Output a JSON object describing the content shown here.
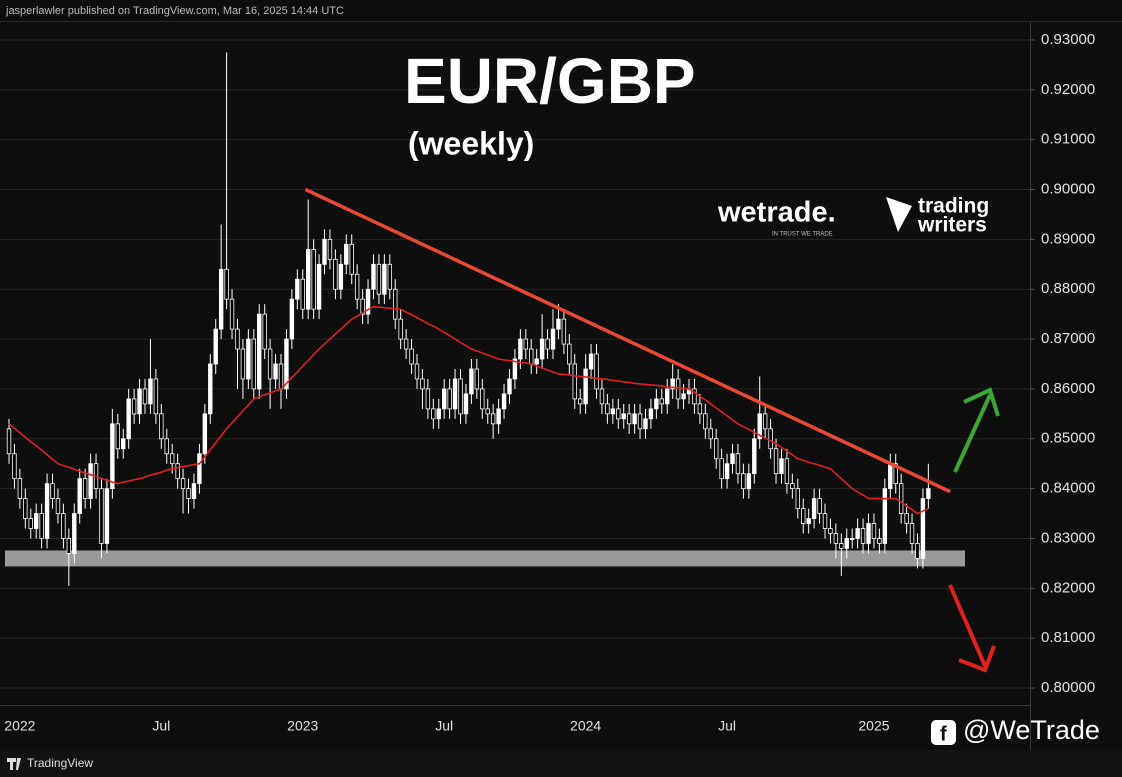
{
  "page": {
    "byline": "jasperlawler published on TradingView.com, Mar 16, 2025 14:44 UTC",
    "footer_brand": "TradingView",
    "handle": "@WeTrade"
  },
  "watermarks": {
    "brand": "wetrade.",
    "tagline": "IN TRUST WE TRADE",
    "partner_line1": "trading",
    "partner_line2": "writers"
  },
  "chart_data": {
    "type": "candlestick",
    "title": "EUR/GBP",
    "subtitle": "(weekly)",
    "up_color": "#ffffff",
    "down_color": "#000000",
    "wick_color": "#ffffff",
    "ylim": [
      0.7966,
      0.9336
    ],
    "yticks": [
      {
        "value": 0.8,
        "label": "0.80000"
      },
      {
        "value": 0.81,
        "label": "0.81000"
      },
      {
        "value": 0.82,
        "label": "0.82000"
      },
      {
        "value": 0.83,
        "label": "0.83000"
      },
      {
        "value": 0.84,
        "label": "0.84000"
      },
      {
        "value": 0.85,
        "label": "0.85000"
      },
      {
        "value": 0.86,
        "label": "0.86000"
      },
      {
        "value": 0.87,
        "label": "0.87000"
      },
      {
        "value": 0.88,
        "label": "0.88000"
      },
      {
        "value": 0.89,
        "label": "0.89000"
      },
      {
        "value": 0.9,
        "label": "0.90000"
      },
      {
        "value": 0.91,
        "label": "0.91000"
      },
      {
        "value": 0.92,
        "label": "0.92000"
      },
      {
        "value": 0.93,
        "label": "0.93000"
      }
    ],
    "grid": true,
    "categories": [
      null,
      null,
      "2022",
      null,
      null,
      null,
      null,
      null,
      null,
      null,
      null,
      null,
      null,
      null,
      null,
      null,
      null,
      null,
      null,
      null,
      null,
      null,
      null,
      null,
      null,
      null,
      null,
      null,
      "Jul",
      null,
      null,
      null,
      null,
      null,
      null,
      null,
      null,
      null,
      null,
      null,
      null,
      null,
      null,
      null,
      null,
      null,
      null,
      null,
      null,
      null,
      null,
      null,
      null,
      null,
      "2023",
      null,
      null,
      null,
      null,
      null,
      null,
      null,
      null,
      null,
      null,
      null,
      null,
      null,
      null,
      null,
      null,
      null,
      null,
      null,
      null,
      null,
      null,
      null,
      null,
      null,
      "Jul",
      null,
      null,
      null,
      null,
      null,
      null,
      null,
      null,
      null,
      null,
      null,
      null,
      null,
      null,
      null,
      null,
      null,
      null,
      null,
      null,
      null,
      null,
      null,
      null,
      null,
      "2024",
      null,
      null,
      null,
      null,
      null,
      null,
      null,
      null,
      null,
      null,
      null,
      null,
      null,
      null,
      null,
      null,
      null,
      null,
      null,
      null,
      null,
      null,
      null,
      null,
      null,
      "Jul",
      null,
      null,
      null,
      null,
      null,
      null,
      null,
      null,
      null,
      null,
      null,
      null,
      null,
      null,
      null,
      null,
      null,
      null,
      null,
      null,
      null,
      null,
      null,
      null,
      null,
      null,
      "2025",
      null,
      null,
      null,
      null,
      null,
      null,
      null,
      null,
      null,
      null
    ],
    "open": [
      0.852,
      0.847,
      0.842,
      0.838,
      0.834,
      0.832,
      0.835,
      0.83,
      0.841,
      0.838,
      0.835,
      0.83,
      0.827,
      0.835,
      0.842,
      0.838,
      0.845,
      0.84,
      0.829,
      0.84,
      0.853,
      0.848,
      0.85,
      0.858,
      0.855,
      0.86,
      0.857,
      0.862,
      0.855,
      0.85,
      0.847,
      0.845,
      0.842,
      0.84,
      0.838,
      0.841,
      0.847,
      0.855,
      0.865,
      0.872,
      0.884,
      0.878,
      0.872,
      0.868,
      0.862,
      0.87,
      0.86,
      0.875,
      0.868,
      0.862,
      0.865,
      0.86,
      0.87,
      0.878,
      0.882,
      0.876,
      0.888,
      0.876,
      0.885,
      0.89,
      0.886,
      0.88,
      0.885,
      0.889,
      0.883,
      0.878,
      0.875,
      0.88,
      0.885,
      0.879,
      0.885,
      0.88,
      0.874,
      0.87,
      0.868,
      0.865,
      0.862,
      0.86,
      0.856,
      0.854,
      0.856,
      0.86,
      0.856,
      0.862,
      0.855,
      0.859,
      0.864,
      0.86,
      0.856,
      0.855,
      0.853,
      0.856,
      0.859,
      0.862,
      0.866,
      0.87,
      0.868,
      0.865,
      0.866,
      0.87,
      0.868,
      0.872,
      0.874,
      0.869,
      0.865,
      0.858,
      0.857,
      0.864,
      0.867,
      0.86,
      0.857,
      0.855,
      0.856,
      0.854,
      0.855,
      0.853,
      0.855,
      0.852,
      0.854,
      0.856,
      0.858,
      0.857,
      0.86,
      0.862,
      0.858,
      0.859,
      0.86,
      0.857,
      0.855,
      0.852,
      0.85,
      0.846,
      0.842,
      0.845,
      0.847,
      0.843,
      0.84,
      0.843,
      0.85,
      0.855,
      0.852,
      0.848,
      0.843,
      0.846,
      0.841,
      0.84,
      0.836,
      0.833,
      0.834,
      0.838,
      0.835,
      0.832,
      0.831,
      0.829,
      0.828,
      0.83,
      0.83,
      0.832,
      0.829,
      0.833,
      0.83,
      0.829,
      0.84,
      0.845,
      0.841,
      0.835,
      0.833,
      0.829,
      0.826,
      0.838
    ],
    "high": [
      0.854,
      0.849,
      0.844,
      0.84,
      0.836,
      0.837,
      0.837,
      0.843,
      0.843,
      0.84,
      0.837,
      0.832,
      0.837,
      0.844,
      0.844,
      0.847,
      0.847,
      0.842,
      0.842,
      0.856,
      0.855,
      0.852,
      0.86,
      0.86,
      0.862,
      0.862,
      0.87,
      0.864,
      0.857,
      0.852,
      0.849,
      0.847,
      0.844,
      0.842,
      0.843,
      0.849,
      0.857,
      0.867,
      0.874,
      0.893,
      0.9275,
      0.88,
      0.874,
      0.87,
      0.872,
      0.872,
      0.877,
      0.877,
      0.87,
      0.867,
      0.867,
      0.872,
      0.88,
      0.884,
      0.884,
      0.898,
      0.89,
      0.887,
      0.892,
      0.892,
      0.888,
      0.887,
      0.891,
      0.891,
      0.885,
      0.88,
      0.882,
      0.887,
      0.887,
      0.887,
      0.887,
      0.882,
      0.876,
      0.872,
      0.87,
      0.867,
      0.864,
      0.862,
      0.858,
      0.858,
      0.862,
      0.862,
      0.864,
      0.864,
      0.861,
      0.866,
      0.866,
      0.862,
      0.858,
      0.857,
      0.858,
      0.861,
      0.864,
      0.868,
      0.872,
      0.872,
      0.87,
      0.868,
      0.875,
      0.872,
      0.876,
      0.877,
      0.876,
      0.871,
      0.867,
      0.86,
      0.867,
      0.869,
      0.869,
      0.862,
      0.859,
      0.858,
      0.858,
      0.857,
      0.857,
      0.857,
      0.857,
      0.856,
      0.858,
      0.86,
      0.86,
      0.862,
      0.865,
      0.864,
      0.861,
      0.862,
      0.862,
      0.859,
      0.857,
      0.854,
      0.852,
      0.848,
      0.847,
      0.849,
      0.849,
      0.845,
      0.845,
      0.852,
      0.8625,
      0.857,
      0.854,
      0.85,
      0.848,
      0.848,
      0.843,
      0.842,
      0.838,
      0.836,
      0.84,
      0.84,
      0.837,
      0.834,
      0.833,
      0.831,
      0.832,
      0.832,
      0.834,
      0.834,
      0.835,
      0.835,
      0.832,
      0.842,
      0.847,
      0.847,
      0.843,
      0.837,
      0.835,
      0.831,
      0.84,
      0.845
    ],
    "low": [
      0.845,
      0.84,
      0.836,
      0.832,
      0.83,
      0.83,
      0.828,
      0.828,
      0.836,
      0.833,
      0.828,
      0.8205,
      0.825,
      0.833,
      0.836,
      0.836,
      0.838,
      0.826,
      0.827,
      0.838,
      0.846,
      0.846,
      0.848,
      0.853,
      0.853,
      0.855,
      0.855,
      0.853,
      0.848,
      0.845,
      0.843,
      0.84,
      0.835,
      0.835,
      0.836,
      0.839,
      0.845,
      0.853,
      0.863,
      0.87,
      0.876,
      0.87,
      0.86,
      0.858,
      0.86,
      0.858,
      0.858,
      0.866,
      0.856,
      0.86,
      0.856,
      0.858,
      0.868,
      0.876,
      0.874,
      0.874,
      0.874,
      0.874,
      0.883,
      0.884,
      0.878,
      0.878,
      0.883,
      0.881,
      0.876,
      0.873,
      0.873,
      0.878,
      0.877,
      0.877,
      0.878,
      0.872,
      0.868,
      0.866,
      0.863,
      0.86,
      0.856,
      0.854,
      0.852,
      0.852,
      0.854,
      0.854,
      0.854,
      0.853,
      0.853,
      0.857,
      0.858,
      0.854,
      0.853,
      0.85,
      0.851,
      0.854,
      0.857,
      0.86,
      0.864,
      0.866,
      0.863,
      0.863,
      0.864,
      0.866,
      0.866,
      0.87,
      0.867,
      0.863,
      0.856,
      0.855,
      0.855,
      0.862,
      0.858,
      0.855,
      0.853,
      0.853,
      0.852,
      0.852,
      0.851,
      0.851,
      0.85,
      0.85,
      0.852,
      0.854,
      0.855,
      0.855,
      0.858,
      0.856,
      0.856,
      0.857,
      0.855,
      0.853,
      0.85,
      0.848,
      0.844,
      0.84,
      0.84,
      0.843,
      0.841,
      0.838,
      0.838,
      0.841,
      0.848,
      0.85,
      0.846,
      0.841,
      0.841,
      0.839,
      0.838,
      0.834,
      0.831,
      0.831,
      0.832,
      0.833,
      0.83,
      0.829,
      0.826,
      0.8225,
      0.826,
      0.828,
      0.828,
      0.827,
      0.827,
      0.828,
      0.827,
      0.827,
      0.838,
      0.839,
      0.833,
      0.831,
      0.827,
      0.824,
      0.824,
      0.836
    ],
    "close": [
      0.847,
      0.842,
      0.838,
      0.834,
      0.832,
      0.835,
      0.83,
      0.841,
      0.838,
      0.835,
      0.83,
      0.827,
      0.835,
      0.842,
      0.838,
      0.845,
      0.84,
      0.829,
      0.84,
      0.853,
      0.848,
      0.85,
      0.858,
      0.855,
      0.86,
      0.857,
      0.862,
      0.855,
      0.85,
      0.847,
      0.845,
      0.842,
      0.84,
      0.838,
      0.841,
      0.847,
      0.855,
      0.865,
      0.872,
      0.884,
      0.878,
      0.872,
      0.868,
      0.862,
      0.87,
      0.86,
      0.875,
      0.868,
      0.862,
      0.865,
      0.86,
      0.87,
      0.878,
      0.882,
      0.876,
      0.888,
      0.876,
      0.885,
      0.89,
      0.886,
      0.88,
      0.885,
      0.889,
      0.883,
      0.878,
      0.875,
      0.88,
      0.885,
      0.879,
      0.885,
      0.88,
      0.874,
      0.87,
      0.868,
      0.865,
      0.862,
      0.86,
      0.856,
      0.854,
      0.856,
      0.86,
      0.856,
      0.862,
      0.855,
      0.859,
      0.864,
      0.86,
      0.856,
      0.855,
      0.853,
      0.856,
      0.859,
      0.862,
      0.866,
      0.87,
      0.868,
      0.865,
      0.866,
      0.87,
      0.868,
      0.872,
      0.874,
      0.869,
      0.865,
      0.858,
      0.857,
      0.864,
      0.867,
      0.86,
      0.857,
      0.855,
      0.856,
      0.854,
      0.855,
      0.853,
      0.855,
      0.852,
      0.854,
      0.856,
      0.858,
      0.857,
      0.86,
      0.862,
      0.858,
      0.859,
      0.86,
      0.857,
      0.855,
      0.852,
      0.85,
      0.846,
      0.842,
      0.845,
      0.847,
      0.843,
      0.84,
      0.843,
      0.85,
      0.855,
      0.852,
      0.848,
      0.843,
      0.846,
      0.841,
      0.84,
      0.836,
      0.833,
      0.834,
      0.838,
      0.835,
      0.832,
      0.831,
      0.829,
      0.828,
      0.83,
      0.83,
      0.832,
      0.829,
      0.833,
      0.83,
      0.829,
      0.84,
      0.845,
      0.841,
      0.835,
      0.833,
      0.829,
      0.826,
      0.838,
      0.84
    ],
    "overlays": [
      {
        "color": "#e0201b",
        "values": [
          0.853,
          0.8521,
          0.8512,
          0.8503,
          0.8494,
          0.8486,
          0.8477,
          0.8468,
          0.8459,
          0.845,
          0.8446,
          0.8443,
          0.8439,
          0.8435,
          0.8431,
          0.8428,
          0.8424,
          0.842,
          0.8417,
          0.8413,
          0.841,
          0.8413,
          0.8415,
          0.8418,
          0.842,
          0.8423,
          0.8427,
          0.843,
          0.8433,
          0.8437,
          0.844,
          0.8442,
          0.8444,
          0.8446,
          0.8448,
          0.845,
          0.8464,
          0.8478,
          0.8492,
          0.8506,
          0.852,
          0.8532,
          0.8544,
          0.8556,
          0.8568,
          0.858,
          0.8584,
          0.8588,
          0.8592,
          0.8596,
          0.86,
          0.8611,
          0.8623,
          0.8634,
          0.8646,
          0.8657,
          0.8669,
          0.868,
          0.869,
          0.87,
          0.871,
          0.872,
          0.873,
          0.874,
          0.8746,
          0.8753,
          0.8759,
          0.8765,
          0.8764,
          0.8763,
          0.8762,
          0.8761,
          0.876,
          0.8754,
          0.8749,
          0.8743,
          0.8737,
          0.8731,
          0.8726,
          0.872,
          0.8713,
          0.8707,
          0.87,
          0.8693,
          0.8687,
          0.868,
          0.8676,
          0.8672,
          0.8668,
          0.8664,
          0.866,
          0.8658,
          0.8657,
          0.8655,
          0.8653,
          0.8652,
          0.865,
          0.8646,
          0.8642,
          0.8638,
          0.8634,
          0.863,
          0.8629,
          0.8628,
          0.8626,
          0.8625,
          0.8624,
          0.8623,
          0.8621,
          0.862,
          0.8619,
          0.8617,
          0.8616,
          0.8614,
          0.8613,
          0.8611,
          0.861,
          0.8609,
          0.8608,
          0.8607,
          0.8606,
          0.8604,
          0.8603,
          0.8602,
          0.8601,
          0.86,
          0.8593,
          0.8585,
          0.8578,
          0.857,
          0.8562,
          0.8554,
          0.8546,
          0.8538,
          0.853,
          0.8524,
          0.8519,
          0.8513,
          0.8507,
          0.8501,
          0.8496,
          0.849,
          0.8483,
          0.8475,
          0.8468,
          0.846,
          0.8457,
          0.8453,
          0.845,
          0.8447,
          0.8443,
          0.844,
          0.843,
          0.842,
          0.841,
          0.84,
          0.8393,
          0.8387,
          0.838,
          0.838,
          0.838,
          0.838,
          0.838,
          0.838,
          0.8373,
          0.8365,
          0.8358,
          0.835,
          0.8355,
          0.836
        ]
      }
    ],
    "trendline": {
      "color": "#e8482e",
      "x": [
        54.5,
        173
      ],
      "values": [
        0.9,
        0.8394
      ]
    },
    "zone": {
      "color": "#9a9a9a",
      "low": 0.8244,
      "high": 0.8276
    }
  }
}
